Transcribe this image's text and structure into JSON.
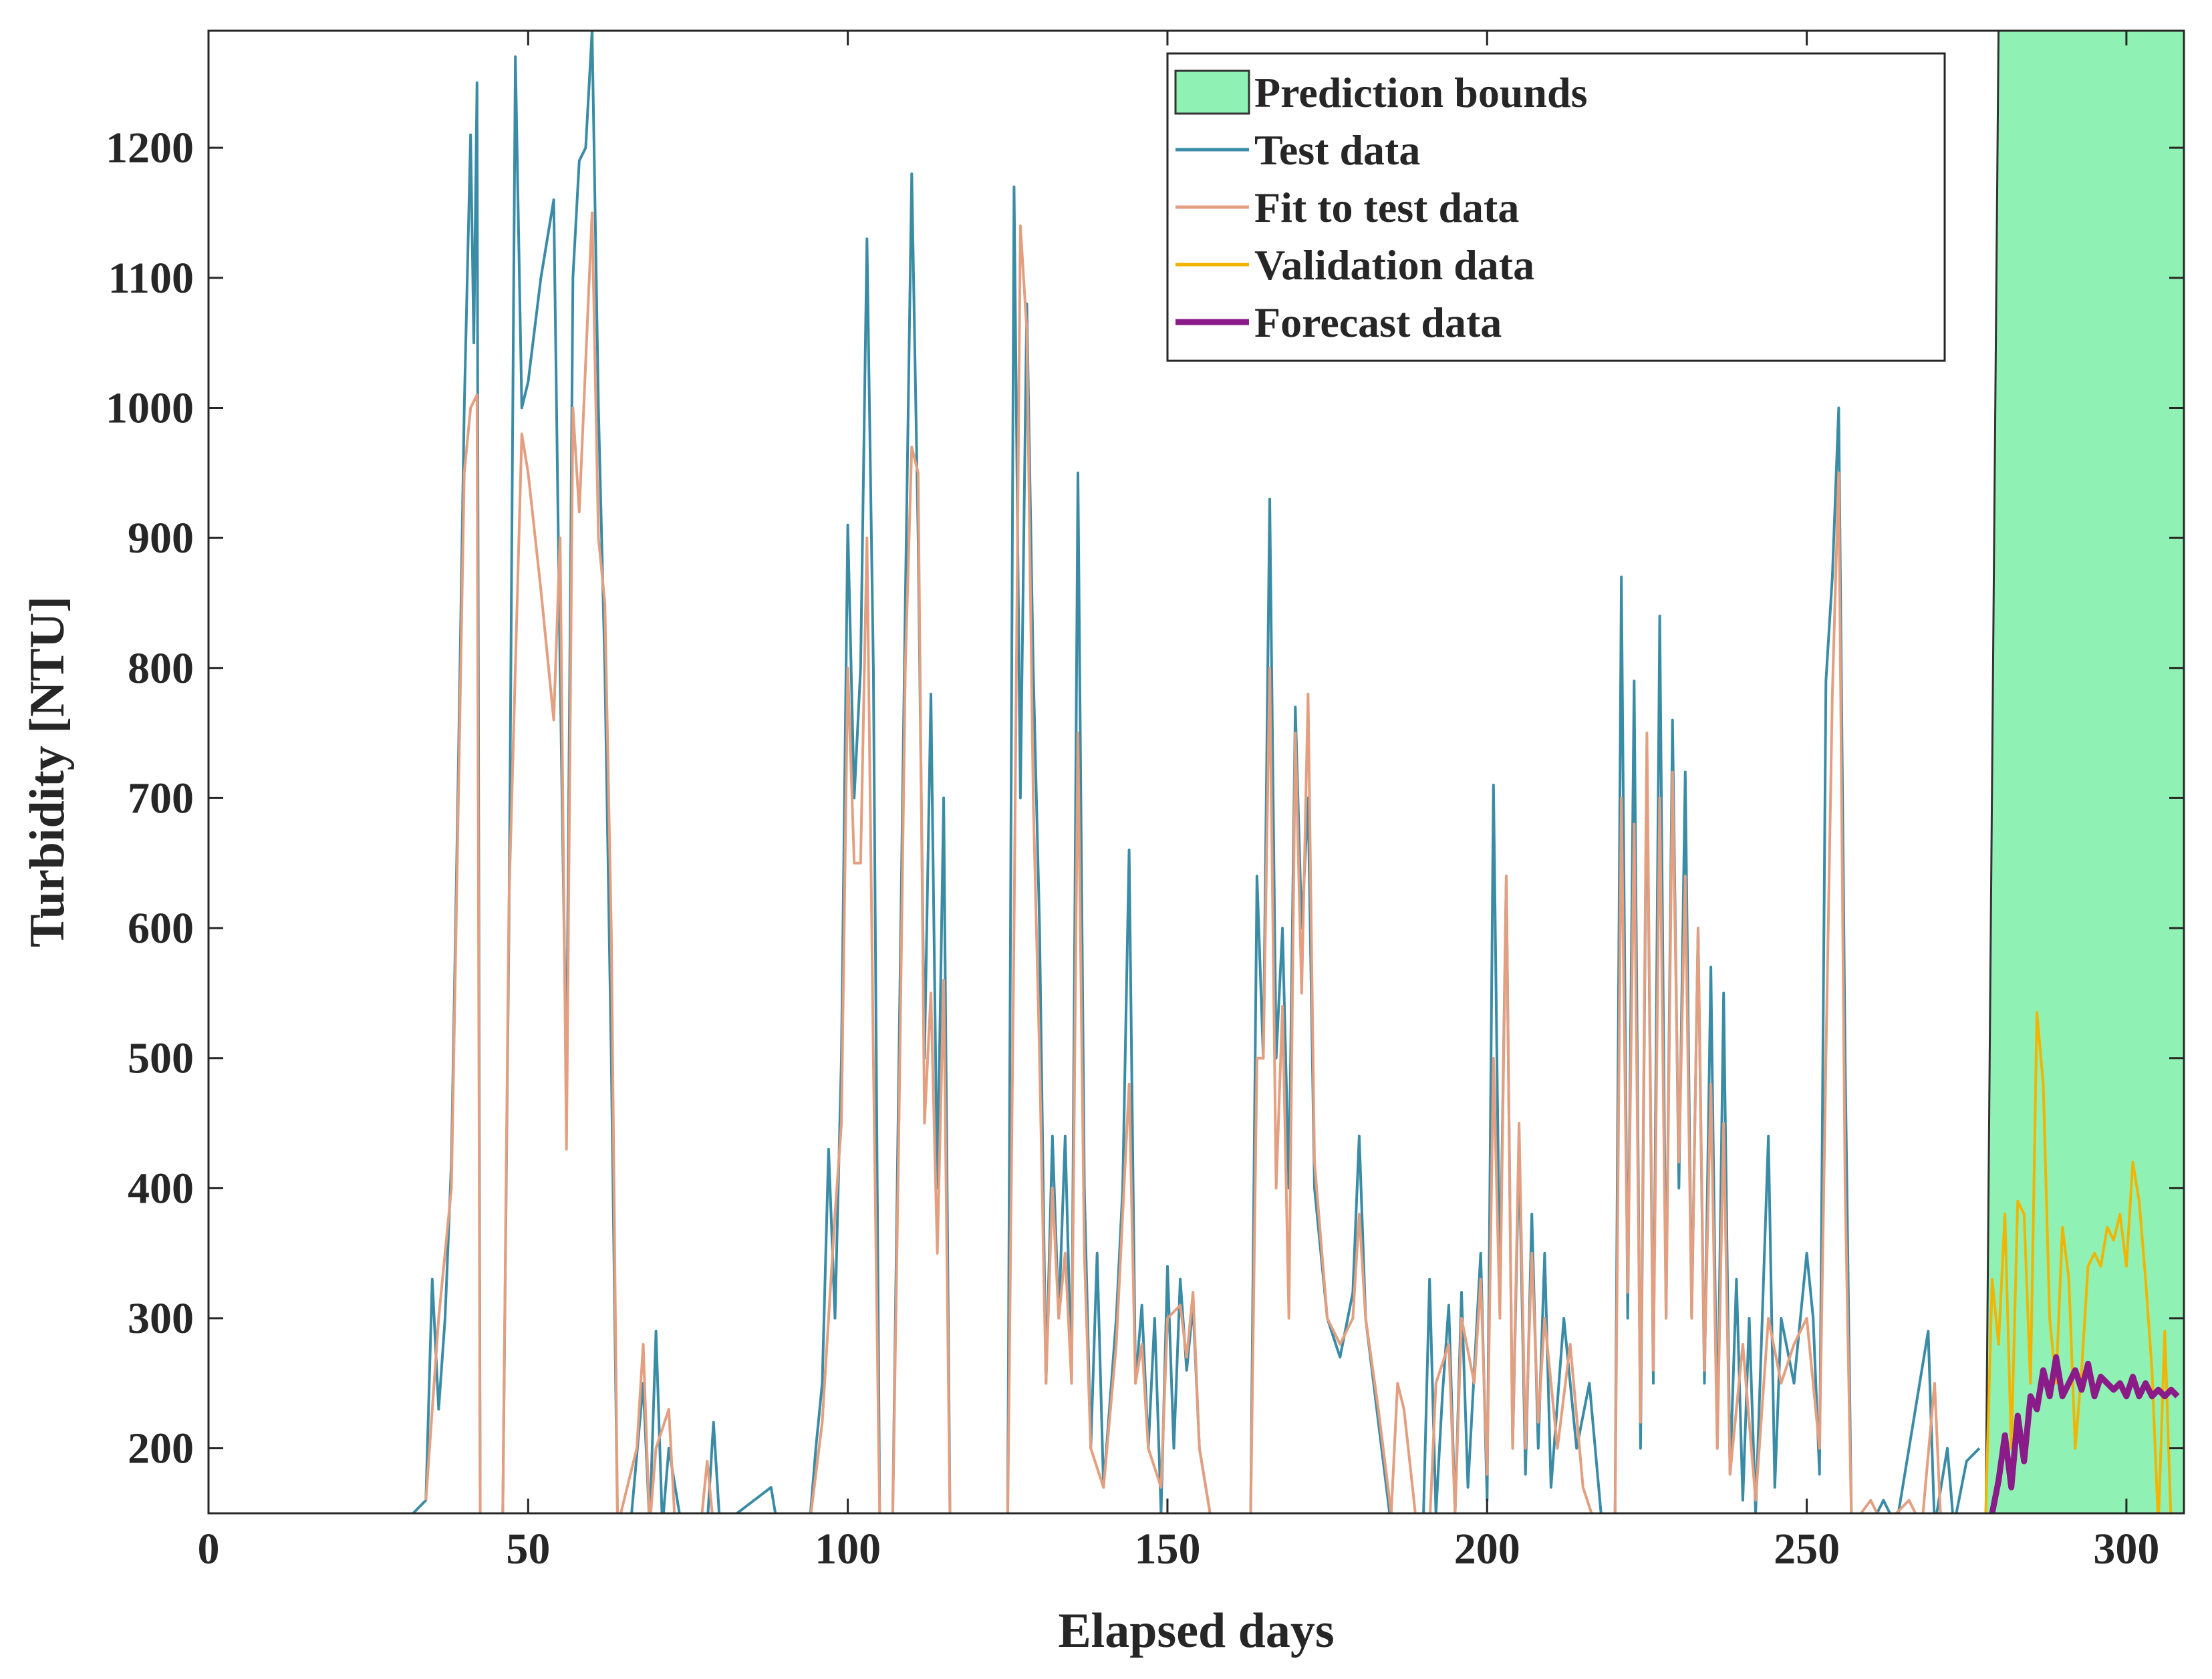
{
  "chart_data": {
    "type": "line",
    "xlabel": "Elapsed days",
    "ylabel": "Turbidity [NTU]",
    "xlim": [
      0,
      309
    ],
    "ylim": [
      150,
      1290
    ],
    "xticks": [
      0,
      50,
      100,
      150,
      200,
      250,
      300
    ],
    "yticks": [
      200,
      300,
      400,
      500,
      600,
      700,
      800,
      900,
      1000,
      1100,
      1200
    ],
    "legend": "upper right",
    "bounds": {
      "name": "Prediction bounds",
      "color": "#8ff2b4",
      "x": [
        278,
        280,
        309
      ],
      "lower": [
        150,
        150,
        150
      ],
      "upper": [
        150,
        1290,
        1290
      ]
    },
    "series": [
      {
        "name": "Test data",
        "color": "#3a8ca6",
        "x": [
          30,
          34,
          35,
          36,
          37,
          38,
          39,
          40,
          41,
          41.5,
          42,
          42.5,
          44,
          46,
          47,
          48,
          49,
          50,
          52,
          54,
          55,
          56,
          57,
          58,
          59,
          60,
          61,
          62,
          63,
          64,
          66,
          68,
          69,
          70,
          71,
          72,
          74,
          78,
          79,
          80,
          88,
          89,
          94,
          95,
          96,
          97,
          98,
          99,
          100,
          101,
          102,
          103,
          104,
          105,
          107,
          108,
          109,
          110,
          111,
          112,
          113,
          114,
          115,
          116,
          125,
          126,
          127,
          128,
          129,
          130,
          131,
          132,
          133,
          134,
          135,
          136,
          137,
          138,
          139,
          140,
          142,
          143,
          144,
          145,
          146,
          147,
          148,
          149,
          150,
          151,
          152,
          153,
          154,
          155,
          157,
          163,
          164,
          165,
          166,
          167,
          168,
          169,
          170,
          171,
          172,
          173,
          175,
          177,
          179,
          180,
          181,
          183,
          185,
          190,
          191,
          192,
          193,
          194,
          195,
          196,
          197,
          198,
          199,
          200,
          201,
          202,
          203,
          204,
          205,
          206,
          207,
          208,
          209,
          210,
          212,
          214,
          216,
          218,
          220,
          221,
          222,
          223,
          224,
          225,
          226,
          227,
          228,
          229,
          230,
          231,
          232,
          233,
          234,
          235,
          236,
          237,
          238,
          239,
          240,
          241,
          242,
          244,
          245,
          246,
          248,
          250,
          251,
          252,
          253,
          254,
          255,
          256,
          257,
          260,
          262,
          264,
          269,
          270,
          272,
          273,
          275,
          277
        ],
        "values": [
          140,
          160,
          330,
          230,
          300,
          420,
          700,
          1000,
          1210,
          1050,
          1250,
          140,
          140,
          140,
          600,
          1270,
          1000,
          1020,
          1100,
          1160,
          800,
          480,
          1100,
          1190,
          1200,
          1290,
          1000,
          800,
          500,
          140,
          140,
          250,
          140,
          290,
          140,
          200,
          140,
          140,
          220,
          140,
          170,
          140,
          140,
          200,
          250,
          430,
          300,
          500,
          910,
          700,
          800,
          1130,
          800,
          140,
          140,
          500,
          850,
          1180,
          900,
          500,
          780,
          400,
          700,
          140,
          140,
          1170,
          700,
          1080,
          800,
          600,
          250,
          440,
          300,
          440,
          250,
          950,
          400,
          200,
          350,
          170,
          300,
          400,
          660,
          250,
          310,
          200,
          300,
          150,
          340,
          200,
          330,
          260,
          310,
          200,
          140,
          140,
          640,
          500,
          930,
          500,
          600,
          400,
          770,
          600,
          700,
          400,
          300,
          270,
          320,
          440,
          300,
          220,
          140,
          140,
          330,
          150,
          240,
          310,
          150,
          320,
          170,
          260,
          350,
          160,
          710,
          320,
          640,
          200,
          430,
          180,
          380,
          200,
          350,
          170,
          300,
          200,
          250,
          140,
          140,
          870,
          300,
          790,
          200,
          740,
          250,
          840,
          300,
          760,
          400,
          720,
          300,
          600,
          250,
          570,
          200,
          550,
          180,
          330,
          160,
          300,
          150,
          440,
          170,
          300,
          250,
          350,
          300,
          180,
          790,
          870,
          1000,
          500,
          140,
          140,
          160,
          140,
          290,
          140,
          200,
          140,
          190,
          200
        ]
      },
      {
        "name": "Fit to test data",
        "color": "#e39f80",
        "x": [
          34,
          36,
          38,
          40,
          41,
          42,
          42.5,
          46,
          47,
          49,
          50,
          52,
          54,
          55,
          56,
          57,
          58,
          60,
          61,
          62,
          63,
          64,
          67,
          68,
          69,
          70,
          72,
          73,
          77,
          78,
          79,
          94,
          96,
          97,
          98,
          99,
          100,
          101,
          102,
          103,
          104,
          105,
          107,
          108,
          109,
          110,
          111,
          112,
          113,
          114,
          115,
          116,
          125,
          126,
          127,
          128,
          129,
          130,
          131,
          132,
          133,
          134,
          135,
          136,
          137,
          138,
          140,
          142,
          143,
          144,
          145,
          146,
          147,
          149,
          150,
          152,
          153,
          154,
          155,
          157,
          163,
          164,
          165,
          166,
          167,
          168,
          169,
          170,
          171,
          172,
          173,
          175,
          177,
          179,
          180,
          181,
          183,
          185,
          186,
          187,
          189,
          191,
          192,
          194,
          195,
          196,
          198,
          199,
          200,
          201,
          202,
          203,
          204,
          205,
          206,
          207,
          208,
          209,
          211,
          213,
          215,
          217,
          220,
          221,
          222,
          223,
          224,
          225,
          226,
          227,
          228,
          229,
          230,
          231,
          232,
          233,
          234,
          235,
          236,
          237,
          238,
          240,
          242,
          244,
          246,
          248,
          250,
          252,
          253,
          254,
          255,
          256,
          257,
          260,
          262,
          266,
          268,
          270,
          271,
          276
        ],
        "values": [
          160,
          300,
          400,
          950,
          1000,
          1010,
          140,
          140,
          620,
          980,
          950,
          860,
          760,
          900,
          430,
          1000,
          920,
          1150,
          900,
          850,
          600,
          140,
          200,
          280,
          140,
          200,
          230,
          140,
          140,
          190,
          140,
          140,
          220,
          300,
          380,
          450,
          800,
          650,
          650,
          900,
          500,
          140,
          140,
          450,
          800,
          970,
          950,
          450,
          550,
          350,
          560,
          140,
          140,
          600,
          1140,
          1060,
          700,
          500,
          250,
          400,
          300,
          350,
          250,
          750,
          350,
          200,
          170,
          280,
          380,
          480,
          250,
          280,
          200,
          170,
          300,
          310,
          270,
          320,
          200,
          140,
          140,
          500,
          500,
          800,
          400,
          540,
          300,
          750,
          550,
          780,
          420,
          300,
          280,
          300,
          380,
          300,
          230,
          150,
          250,
          230,
          140,
          140,
          250,
          280,
          150,
          300,
          250,
          330,
          180,
          500,
          300,
          640,
          200,
          450,
          200,
          350,
          220,
          300,
          200,
          280,
          170,
          140,
          140,
          700,
          320,
          680,
          220,
          750,
          260,
          700,
          300,
          720,
          420,
          640,
          300,
          600,
          260,
          480,
          200,
          450,
          180,
          280,
          160,
          300,
          250,
          280,
          300,
          200,
          500,
          780,
          950,
          400,
          140,
          160,
          140,
          160,
          140,
          250,
          140,
          140
        ]
      },
      {
        "name": "Validation data",
        "color": "#f2b400",
        "x": [
          278,
          279,
          280,
          281,
          282,
          283,
          284,
          285,
          286,
          287,
          288,
          289,
          290,
          291,
          292,
          293,
          294,
          295,
          296,
          297,
          298,
          299,
          300,
          301,
          302,
          303,
          304,
          305,
          306,
          307
        ],
        "values": [
          150,
          330,
          280,
          380,
          200,
          390,
          380,
          250,
          535,
          480,
          300,
          250,
          370,
          330,
          200,
          260,
          340,
          350,
          340,
          370,
          360,
          380,
          340,
          420,
          390,
          330,
          260,
          140,
          290,
          140
        ]
      },
      {
        "name": "Forecast data",
        "color": "#8a1b88",
        "x": [
          279,
          280,
          281,
          282,
          283,
          284,
          285,
          286,
          287,
          288,
          289,
          290,
          291,
          292,
          293,
          294,
          295,
          296,
          297,
          298,
          299,
          300,
          301,
          302,
          303,
          304,
          305,
          306,
          307,
          308
        ],
        "values": [
          150,
          175,
          210,
          170,
          225,
          190,
          240,
          230,
          260,
          240,
          270,
          240,
          250,
          260,
          245,
          265,
          240,
          255,
          250,
          245,
          250,
          240,
          255,
          240,
          250,
          240,
          245,
          240,
          245,
          240
        ]
      }
    ]
  }
}
